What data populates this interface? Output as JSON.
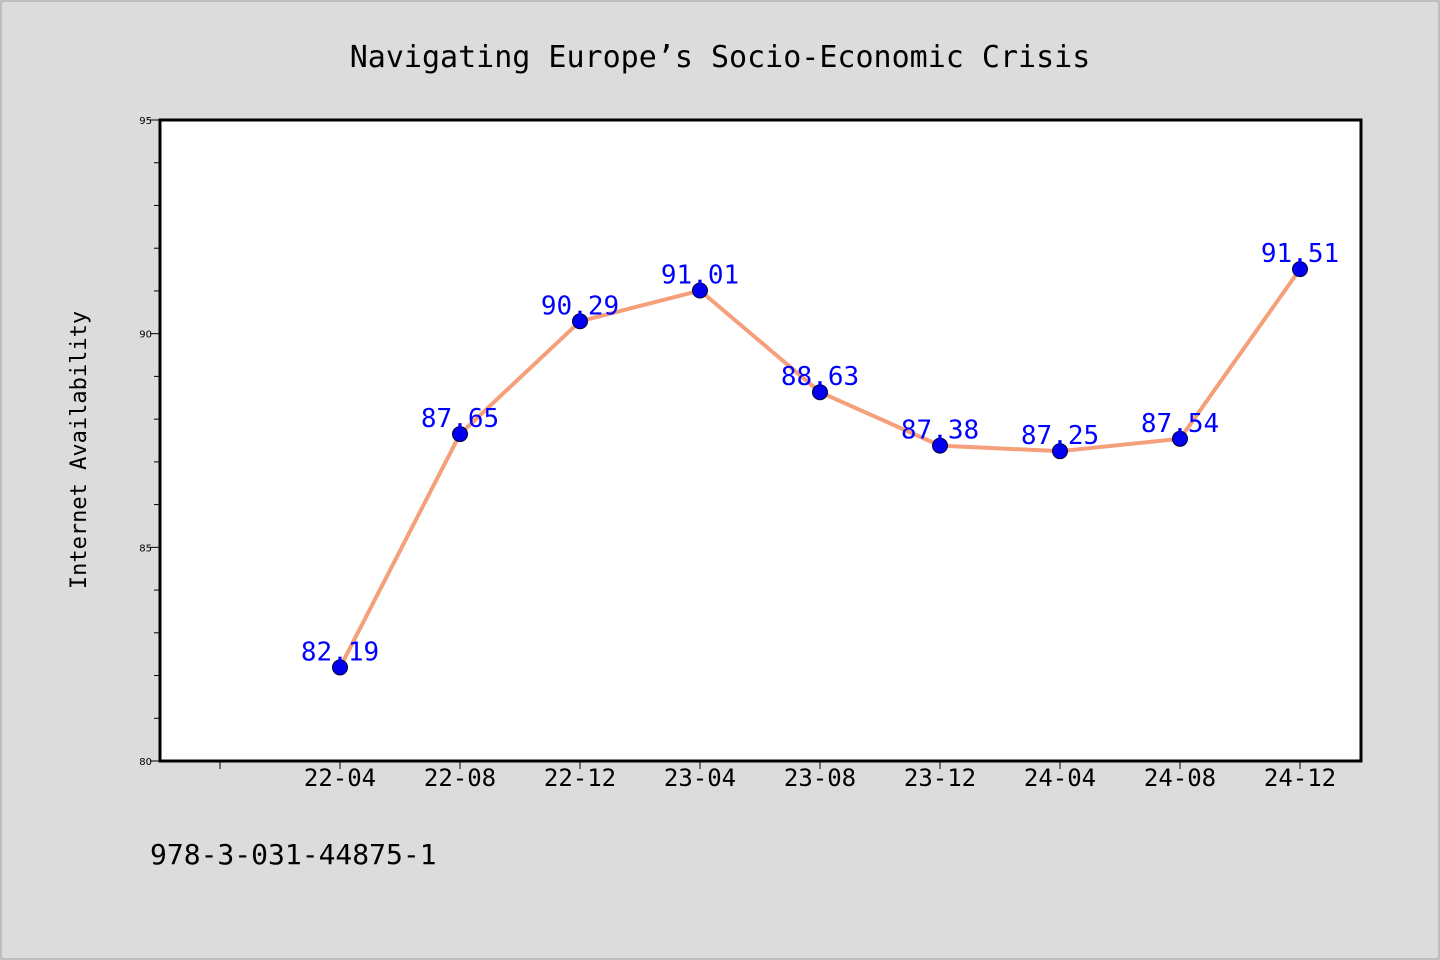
{
  "chart_data": {
    "type": "line",
    "title": "Navigating Europe’s Socio-Economic Crisis",
    "xlabel": "",
    "ylabel": "Internet Availability",
    "categories": [
      "22-04",
      "22-08",
      "22-12",
      "23-04",
      "23-08",
      "23-12",
      "24-04",
      "24-08",
      "24-12"
    ],
    "series": [
      {
        "values": [
          82.19,
          87.65,
          90.29,
          91.01,
          88.63,
          87.38,
          87.25,
          87.54,
          91.51
        ],
        "data_labels": [
          "82.19",
          "87.65",
          "90.29",
          "91.01",
          "88.63",
          "87.38",
          "87.25",
          "87.54",
          "91.51"
        ]
      }
    ],
    "ylim": [
      80,
      95
    ],
    "yticks": [
      "80",
      "85",
      "90",
      "95"
    ],
    "grid": false,
    "colors": {
      "line": "#f5a07a",
      "marker": "#0000ee",
      "data_label": "#0000ff",
      "plot_background": "#ffffff",
      "figure_background": "#dcdcdc"
    }
  },
  "footer": {
    "isbn": "978-3-031-44875-1"
  }
}
